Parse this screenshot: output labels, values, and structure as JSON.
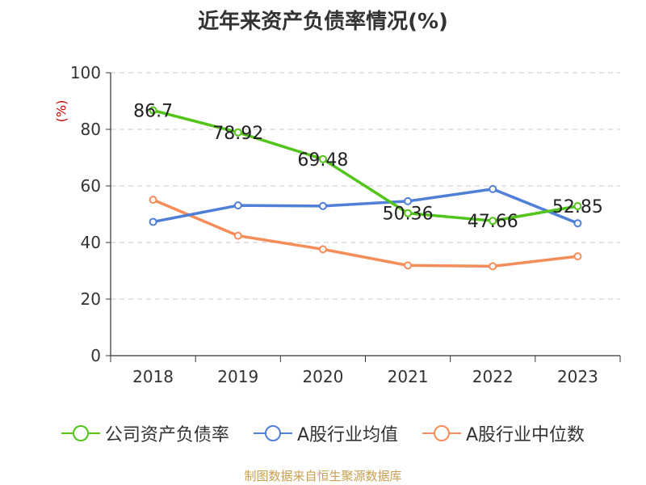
{
  "title": "近年来资产负债率情况(%)",
  "unit_label": "(%)",
  "source_note": "制图数据来自恒生聚源数据库",
  "chart_data": {
    "type": "line",
    "title": "近年来资产负债率情况(%)",
    "xlabel": "",
    "ylabel": "(%)",
    "categories": [
      "2018",
      "2019",
      "2020",
      "2021",
      "2022",
      "2023"
    ],
    "ylim": [
      0,
      100
    ],
    "yticks": [
      "0",
      "20",
      "40",
      "60",
      "80",
      "100"
    ],
    "grid": true,
    "legend_position": "bottom",
    "series": [
      {
        "name": "公司资产负债率",
        "color": "#52c41a",
        "values": [
          86.7,
          78.92,
          69.48,
          50.36,
          47.66,
          52.85
        ],
        "labels": [
          "86.7",
          "78.92",
          "69.48",
          "50.36",
          "47.66",
          "52.85"
        ]
      },
      {
        "name": "A股行业均值",
        "color": "#4f7fd6",
        "values": [
          47.3,
          53.1,
          52.9,
          54.6,
          58.9,
          46.8
        ]
      },
      {
        "name": "A股行业中位数",
        "color": "#f58d5a",
        "values": [
          55.1,
          42.4,
          37.6,
          31.9,
          31.6,
          35.1
        ]
      }
    ]
  }
}
